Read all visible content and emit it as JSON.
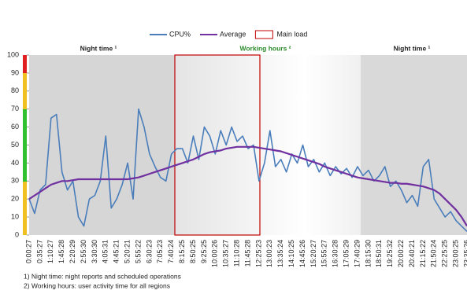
{
  "chart_data": {
    "type": "line",
    "legend_extra": "Main load",
    "zones": [
      "Night time ¹",
      "Working hours ²",
      "Night time ¹"
    ],
    "footnotes": [
      "1) Night time: night reports and scheduled operations",
      "2) Working hours: user activity time for all regions"
    ],
    "categories": [
      "0:00:27",
      null,
      "0:35:27",
      null,
      "1:10:27",
      null,
      "1:45:28",
      null,
      "2:20:29",
      null,
      "2:55:30",
      null,
      "3:30:30",
      null,
      "4:05:31",
      null,
      "4:45:21",
      null,
      "5:20:21",
      null,
      "5:55:22",
      null,
      "6:30:23",
      null,
      "7:05:23",
      null,
      "7:40:24",
      null,
      "8:15:25",
      null,
      "8:50:25",
      null,
      "9:25:25",
      null,
      "10:00:26",
      null,
      "10:35:27",
      null,
      "11:10:28",
      null,
      "11:45:28",
      null,
      "12:25:23",
      null,
      "13:00:23",
      null,
      "13:35:24",
      null,
      "14:10:25",
      null,
      "14:45:26",
      null,
      "15:20:27",
      null,
      "15:55:27",
      null,
      "16:30:28",
      null,
      "17:05:29",
      null,
      "17:40:29",
      null,
      "18:15:30",
      null,
      "18:50:31",
      null,
      "19:25:32",
      null,
      "20:00:22",
      null,
      "20:40:21",
      null,
      "21:15:22",
      null,
      "21:50:24",
      null,
      "22:25:25",
      null,
      "23:00:25",
      null,
      "23:35:26"
    ],
    "series": [
      {
        "name": "CPU%",
        "color": "#4a7ebb",
        "values": [
          20,
          12,
          25,
          28,
          65,
          67,
          35,
          25,
          30,
          10,
          5,
          20,
          22,
          30,
          55,
          15,
          20,
          28,
          40,
          20,
          70,
          60,
          45,
          38,
          32,
          30,
          45,
          48,
          48,
          40,
          55,
          42,
          60,
          55,
          45,
          58,
          50,
          60,
          52,
          55,
          48,
          50,
          30,
          40,
          58,
          38,
          42,
          35,
          45,
          40,
          50,
          38,
          42,
          35,
          40,
          33,
          38,
          34,
          37,
          32,
          38,
          33,
          36,
          30,
          33,
          38,
          27,
          30,
          25,
          18,
          22,
          16,
          38,
          42,
          20,
          15,
          10,
          13,
          8,
          5,
          2
        ]
      },
      {
        "name": "Average",
        "color": "#7030a0",
        "values": [
          20,
          22,
          24,
          26,
          28,
          29,
          30,
          30,
          30.5,
          31,
          31,
          31,
          31,
          31,
          31,
          31,
          31,
          31,
          31,
          31.5,
          32,
          33,
          34,
          35,
          36,
          37,
          38,
          39,
          40,
          41,
          42,
          43.5,
          45,
          46,
          46.5,
          47,
          48,
          48.5,
          49,
          49,
          49,
          49,
          48.5,
          48,
          47.5,
          47,
          46.5,
          45.5,
          44.5,
          43.5,
          42.5,
          41.5,
          40.5,
          39.5,
          38,
          37,
          36,
          35,
          34,
          33,
          32,
          31.5,
          31,
          30.5,
          30,
          29.5,
          29,
          29,
          28.5,
          28.5,
          28,
          27.5,
          27,
          26,
          25,
          23,
          20,
          17,
          14,
          10,
          5
        ]
      }
    ],
    "main_load_color": "#c00000",
    "ylim": [
      0,
      100
    ],
    "yticks": [
      0,
      10,
      20,
      30,
      40,
      50,
      60,
      70,
      80,
      90,
      100
    ],
    "grid": false
  }
}
